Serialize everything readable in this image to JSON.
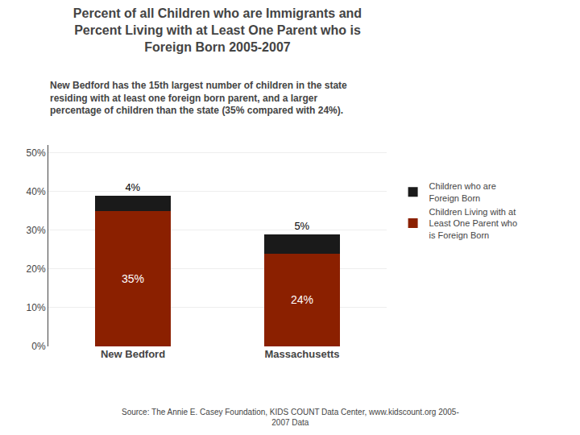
{
  "chart_data": {
    "type": "bar",
    "stacked": true,
    "title": "Percent of all Children who are Immigrants and\nPercent Living with at Least One Parent who is\nForeign Born 2005-2007",
    "subtitle": "New Bedford has the 15th largest number of children in the state\nresiding with at least one foreign born parent, and a larger\npercentage of children than the state (35% compared with 24%).",
    "annotations": [
      "Source: The Annie E. Casey Foundation, KIDS COUNT Data Center, www.kidscount.org 2005-\n2007 Data"
    ],
    "categories": [
      "New Bedford",
      "Massachusetts"
    ],
    "series": [
      {
        "name": "Children Living with at\nLeast One Parent who\nis Foreign Born",
        "color": "#8B2000",
        "values": [
          35,
          24
        ],
        "value_labels": [
          "35%",
          "24%"
        ]
      },
      {
        "name": "Children who are\nForeign Born",
        "color": "#1A1A1A",
        "values": [
          4,
          5
        ],
        "value_labels": [
          "4%",
          "5%"
        ]
      }
    ],
    "data_labels": true,
    "ylim": [
      0,
      52
    ],
    "yticks": [
      {
        "value": 0,
        "label": "0%"
      },
      {
        "value": 10,
        "label": "10%"
      },
      {
        "value": 20,
        "label": "20%"
      },
      {
        "value": 30,
        "label": "30%"
      },
      {
        "value": 40,
        "label": "40%"
      },
      {
        "value": 50,
        "label": "50%"
      }
    ],
    "grid": true
  }
}
